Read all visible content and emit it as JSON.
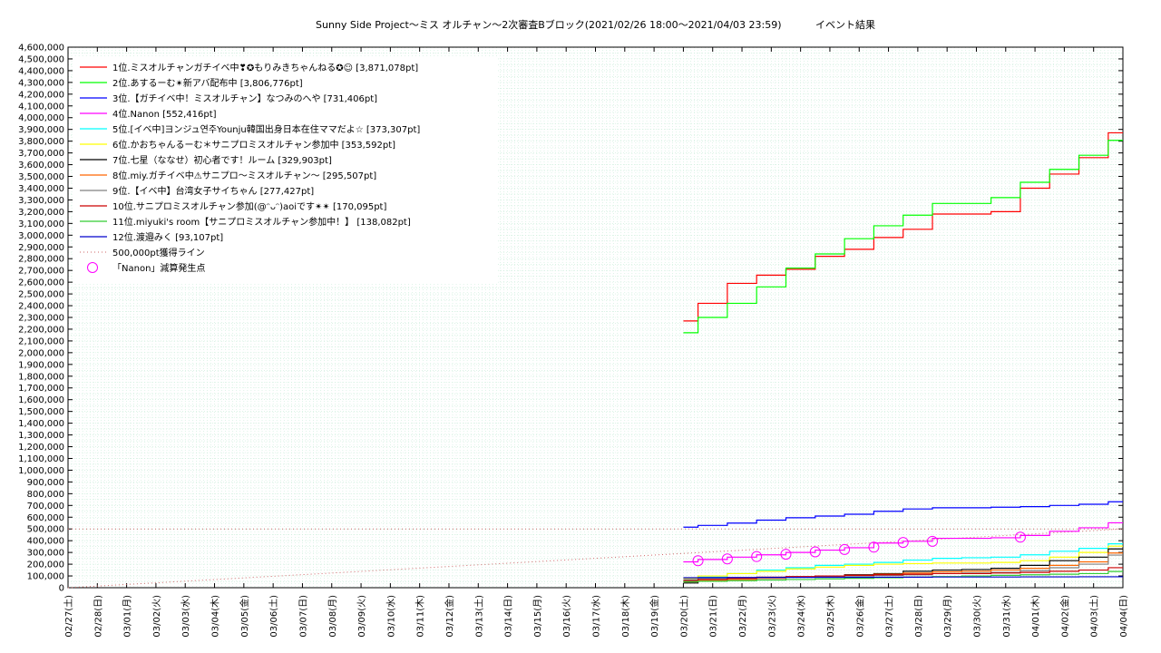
{
  "chart_data": {
    "type": "line",
    "title": "Sunny Side Project～ミス オルチャン～2次審査Bブロック(2021/02/26 18:00～2021/04/03 23:59)",
    "subtitle": "イベント結果",
    "xlabel": "",
    "ylabel": "",
    "ylim": [
      0,
      4600000
    ],
    "yticks": [
      0,
      100000,
      200000,
      300000,
      400000,
      500000,
      600000,
      700000,
      800000,
      900000,
      1000000,
      1100000,
      1200000,
      1300000,
      1400000,
      1500000,
      1600000,
      1700000,
      1800000,
      1900000,
      2000000,
      2100000,
      2200000,
      2300000,
      2400000,
      2500000,
      2600000,
      2700000,
      2800000,
      2900000,
      3000000,
      3100000,
      3200000,
      3300000,
      3400000,
      3500000,
      3600000,
      3700000,
      3800000,
      3900000,
      4000000,
      4100000,
      4200000,
      4300000,
      4400000,
      4500000,
      4600000
    ],
    "xlim": [
      "02/27",
      "04/04"
    ],
    "categories": [
      "02/27(土)",
      "02/28(日)",
      "03/01(月)",
      "03/02(火)",
      "03/03(水)",
      "03/04(木)",
      "03/05(金)",
      "03/06(土)",
      "03/07(日)",
      "03/08(月)",
      "03/09(火)",
      "03/10(水)",
      "03/11(木)",
      "03/12(金)",
      "03/13(土)",
      "03/14(日)",
      "03/15(月)",
      "03/16(火)",
      "03/17(水)",
      "03/18(木)",
      "03/19(金)",
      "03/20(土)",
      "03/21(日)",
      "03/22(月)",
      "03/23(火)",
      "03/24(水)",
      "03/25(木)",
      "03/26(金)",
      "03/27(土)",
      "03/28(日)",
      "03/29(月)",
      "03/30(火)",
      "03/31(水)",
      "04/01(木)",
      "04/02(金)",
      "04/03(土)",
      "04/04(日)"
    ],
    "grid": true,
    "legend_position": "top-left",
    "series": [
      {
        "name": "1位.ミスオルチャンガチイベ中❣✪もりみきちゃんねる✪☺ [3,871,078pt]",
        "color": "#ff0000",
        "x": [
          "03/20",
          "03/21",
          "03/22",
          "03/23",
          "03/24",
          "03/25",
          "03/26",
          "03/27",
          "03/28",
          "03/29",
          "03/30",
          "03/31",
          "04/01",
          "04/02",
          "04/03",
          "04/04"
        ],
        "y": [
          2270000,
          2420000,
          2590000,
          2660000,
          2710000,
          2820000,
          2880000,
          2980000,
          3050000,
          3180000,
          3180000,
          3200000,
          3400000,
          3520000,
          3660000,
          3871078
        ]
      },
      {
        "name": "2位.あするーむ✴新アバ配布中 [3,806,776pt]",
        "color": "#00ff00",
        "x": [
          "03/20",
          "03/21",
          "03/22",
          "03/23",
          "03/24",
          "03/25",
          "03/26",
          "03/27",
          "03/28",
          "03/29",
          "03/30",
          "03/31",
          "04/01",
          "04/02",
          "04/03",
          "04/04"
        ],
        "y": [
          2170000,
          2300000,
          2420000,
          2560000,
          2720000,
          2840000,
          2970000,
          3080000,
          3170000,
          3270000,
          3270000,
          3320000,
          3450000,
          3560000,
          3680000,
          3806776
        ]
      },
      {
        "name": "3位.【ガチイベ中！ミスオルチャン】なつみのへや [731,406pt]",
        "color": "#0000ff",
        "x": [
          "03/20",
          "03/21",
          "03/22",
          "03/23",
          "03/24",
          "03/25",
          "03/26",
          "03/27",
          "03/28",
          "03/29",
          "03/30",
          "03/31",
          "04/01",
          "04/02",
          "04/03",
          "04/04"
        ],
        "y": [
          515000,
          530000,
          550000,
          575000,
          595000,
          610000,
          625000,
          650000,
          670000,
          680000,
          680000,
          685000,
          690000,
          700000,
          710000,
          731406
        ]
      },
      {
        "name": "4位.Nanon [552,416pt]",
        "color": "#ff00ff",
        "x": [
          "03/20",
          "03/21",
          "03/22",
          "03/23",
          "03/24",
          "03/25",
          "03/26",
          "03/27",
          "03/28",
          "03/29",
          "03/30",
          "03/31",
          "04/01",
          "04/02",
          "04/03",
          "04/04"
        ],
        "y": [
          220000,
          240000,
          260000,
          280000,
          300000,
          320000,
          340000,
          380000,
          395000,
          420000,
          420000,
          425000,
          445000,
          480000,
          510000,
          552416
        ]
      },
      {
        "name": "5位.[イベ中]ヨンジュ연주Younju韓国出身日本在住ママだよ☆ [373,307pt]",
        "color": "#00ffff",
        "x": [
          "03/20",
          "03/21",
          "03/22",
          "03/23",
          "03/24",
          "03/25",
          "03/26",
          "03/27",
          "03/28",
          "03/29",
          "03/30",
          "03/31",
          "04/01",
          "04/02",
          "04/03",
          "04/04"
        ],
        "y": [
          60000,
          90000,
          120000,
          150000,
          170000,
          190000,
          200000,
          215000,
          235000,
          250000,
          255000,
          260000,
          280000,
          310000,
          335000,
          373307
        ]
      },
      {
        "name": "6位.かおちゃんるーむ＊サニプロミスオルチャン参加中 [353,592pt]",
        "color": "#ffff00",
        "x": [
          "03/20",
          "03/21",
          "03/22",
          "03/23",
          "03/24",
          "03/25",
          "03/26",
          "03/27",
          "03/28",
          "03/29",
          "03/30",
          "03/31",
          "04/01",
          "04/02",
          "04/03",
          "04/04"
        ],
        "y": [
          80000,
          100000,
          120000,
          140000,
          160000,
          175000,
          190000,
          200000,
          205000,
          210000,
          210000,
          215000,
          230000,
          260000,
          300000,
          353592
        ]
      },
      {
        "name": "7位.七星（ななせ）初心者です！ルーム [329,903pt]",
        "color": "#000000",
        "x": [
          "03/20",
          "03/21",
          "03/22",
          "03/23",
          "03/24",
          "03/25",
          "03/26",
          "03/27",
          "03/28",
          "03/29",
          "03/30",
          "03/31",
          "04/01",
          "04/02",
          "04/03",
          "04/04"
        ],
        "y": [
          40000,
          55000,
          70000,
          80000,
          90000,
          100000,
          110000,
          120000,
          140000,
          150000,
          155000,
          165000,
          190000,
          230000,
          260000,
          329903
        ]
      },
      {
        "name": "8位.miy.ガチイベ中⚠サニプロ〜ミスオルチャン〜 [295,507pt]",
        "color": "#ff6600",
        "x": [
          "03/20",
          "03/21",
          "03/22",
          "03/23",
          "03/24",
          "03/25",
          "03/26",
          "03/27",
          "03/28",
          "03/29",
          "03/30",
          "03/31",
          "04/01",
          "04/02",
          "04/03",
          "04/04"
        ],
        "y": [
          50000,
          60000,
          70000,
          80000,
          90000,
          95000,
          105000,
          115000,
          125000,
          135000,
          140000,
          150000,
          165000,
          190000,
          220000,
          295507
        ]
      },
      {
        "name": "9位.【イベ中】台湾女子サイちゃん [277,427pt]",
        "color": "#808080",
        "x": [
          "03/20",
          "03/21",
          "03/22",
          "03/23",
          "03/24",
          "03/25",
          "03/26",
          "03/27",
          "03/28",
          "03/29",
          "03/30",
          "03/31",
          "04/01",
          "04/02",
          "04/03",
          "04/04"
        ],
        "y": [
          70000,
          75000,
          80000,
          85000,
          90000,
          95000,
          100000,
          105000,
          110000,
          120000,
          125000,
          130000,
          145000,
          170000,
          200000,
          277427
        ]
      },
      {
        "name": "10位.サニプロミスオルチャン参加(@ᵔᴗᵔ)aoiです✴✴ [170,095pt]",
        "color": "#cc0000",
        "x": [
          "03/20",
          "03/21",
          "03/22",
          "03/23",
          "03/24",
          "03/25",
          "03/26",
          "03/27",
          "03/28",
          "03/29",
          "03/30",
          "03/31",
          "04/01",
          "04/02",
          "04/03",
          "04/04"
        ],
        "y": [
          60000,
          70000,
          80000,
          90000,
          95000,
          100000,
          105000,
          110000,
          115000,
          120000,
          120000,
          125000,
          130000,
          140000,
          150000,
          170095
        ]
      },
      {
        "name": "11位.miyuki's room【サニプロミスオルチャン参加中！】 [138,082pt]",
        "color": "#33cc33",
        "x": [
          "03/20",
          "03/21",
          "03/22",
          "03/23",
          "03/24",
          "03/25",
          "03/26",
          "03/27",
          "03/28",
          "03/29",
          "03/30",
          "03/31",
          "04/01",
          "04/02",
          "04/03",
          "04/04"
        ],
        "y": [
          50000,
          55000,
          60000,
          65000,
          70000,
          75000,
          80000,
          85000,
          90000,
          95000,
          100000,
          105000,
          110000,
          115000,
          120000,
          138082
        ]
      },
      {
        "name": "12位.渡邉みく [93,107pt]",
        "color": "#0000cc",
        "x": [
          "03/20",
          "03/21",
          "03/22",
          "03/23",
          "03/24",
          "03/25",
          "03/26",
          "03/27",
          "03/28",
          "03/29",
          "03/30",
          "03/31",
          "04/01",
          "04/02",
          "04/03",
          "04/04"
        ],
        "y": [
          85000,
          86000,
          87000,
          88000,
          88000,
          89000,
          89000,
          90000,
          90000,
          91000,
          91000,
          91000,
          92000,
          92000,
          93000,
          93107
        ]
      }
    ],
    "reference_line": {
      "name": "500,000pt獲得ライン",
      "value": 500000,
      "color": "#cc6666",
      "style": "dotted"
    },
    "pace_line": {
      "x": [
        "02/27",
        "04/04"
      ],
      "y": [
        0,
        500000
      ],
      "color": "#cc6666",
      "style": "dotted"
    },
    "markers": {
      "name": "「Nanon」減算発生点",
      "color": "#ff00ff",
      "shape": "circle",
      "points": [
        {
          "x": "03/20 12:00",
          "y": 230000
        },
        {
          "x": "03/21 12:00",
          "y": 245000
        },
        {
          "x": "03/22 12:00",
          "y": 265000
        },
        {
          "x": "03/23 12:00",
          "y": 285000
        },
        {
          "x": "03/24 12:00",
          "y": 305000
        },
        {
          "x": "03/25 12:00",
          "y": 325000
        },
        {
          "x": "03/26 12:00",
          "y": 345000
        },
        {
          "x": "03/27 12:00",
          "y": 385000
        },
        {
          "x": "03/28 12:00",
          "y": 395000
        },
        {
          "x": "03/31 12:00",
          "y": 430000
        }
      ]
    }
  }
}
